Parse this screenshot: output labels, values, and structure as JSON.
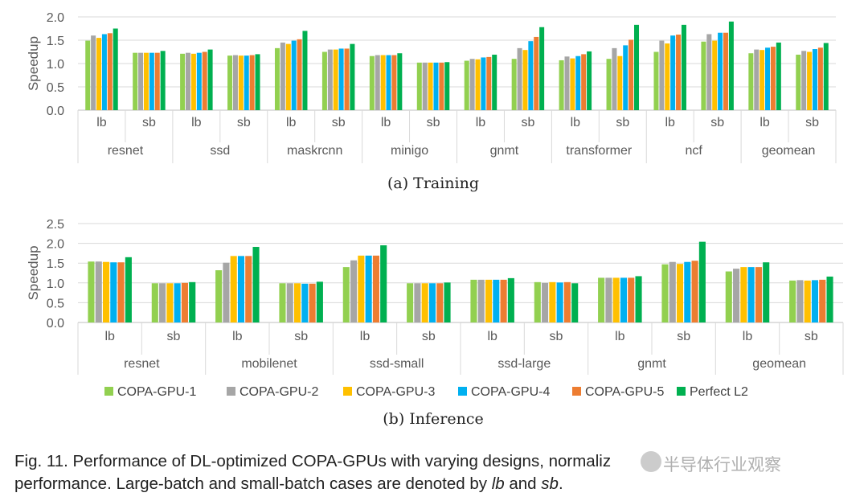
{
  "colors": {
    "COPA-GPU-1": "#92d050",
    "COPA-GPU-2": "#a6a6a6",
    "COPA-GPU-3": "#ffc000",
    "COPA-GPU-4": "#00b0f0",
    "COPA-GPU-5": "#ed7d31",
    "Perfect L2": "#00b050"
  },
  "chart_data": [
    {
      "type": "bar",
      "subtitle": "(a)  Training",
      "ylabel": "Speedup",
      "ylim": [
        0,
        2.0
      ],
      "yticks": [
        "0.0",
        "0.5",
        "1.0",
        "1.5",
        "2.0"
      ],
      "grid": true,
      "groups": [
        "resnet",
        "ssd",
        "maskrcnn",
        "minigo",
        "gnmt",
        "transformer",
        "ncf",
        "geomean"
      ],
      "subcategories": [
        "lb",
        "sb"
      ],
      "series": [
        {
          "name": "COPA-GPU-1",
          "values": [
            1.49,
            1.23,
            1.21,
            1.17,
            1.33,
            1.25,
            1.16,
            1.02,
            1.06,
            1.1,
            1.07,
            1.1,
            1.25,
            1.47,
            1.22,
            1.19
          ]
        },
        {
          "name": "COPA-GPU-2",
          "values": [
            1.6,
            1.23,
            1.23,
            1.18,
            1.45,
            1.3,
            1.18,
            1.02,
            1.1,
            1.33,
            1.15,
            1.33,
            1.49,
            1.63,
            1.3,
            1.27
          ]
        },
        {
          "name": "COPA-GPU-3",
          "values": [
            1.55,
            1.23,
            1.21,
            1.17,
            1.42,
            1.3,
            1.18,
            1.02,
            1.09,
            1.29,
            1.11,
            1.16,
            1.43,
            1.49,
            1.29,
            1.25
          ]
        },
        {
          "name": "COPA-GPU-4",
          "values": [
            1.63,
            1.23,
            1.23,
            1.17,
            1.49,
            1.32,
            1.18,
            1.02,
            1.13,
            1.48,
            1.16,
            1.39,
            1.6,
            1.66,
            1.34,
            1.31
          ]
        },
        {
          "name": "COPA-GPU-5",
          "values": [
            1.65,
            1.23,
            1.25,
            1.18,
            1.52,
            1.32,
            1.18,
            1.02,
            1.14,
            1.57,
            1.2,
            1.51,
            1.62,
            1.66,
            1.36,
            1.34
          ]
        },
        {
          "name": "Perfect L2",
          "values": [
            1.75,
            1.27,
            1.3,
            1.2,
            1.7,
            1.42,
            1.22,
            1.03,
            1.19,
            1.78,
            1.26,
            1.83,
            1.83,
            1.9,
            1.45,
            1.44
          ]
        }
      ]
    },
    {
      "type": "bar",
      "subtitle": "(b)  Inference",
      "ylabel": "Speedup",
      "ylim": [
        0,
        2.5
      ],
      "yticks": [
        "0.0",
        "0.5",
        "1.0",
        "1.5",
        "2.0",
        "2.5"
      ],
      "grid": true,
      "groups": [
        "resnet",
        "mobilenet",
        "ssd-small",
        "ssd-large",
        "gnmt",
        "geomean"
      ],
      "subcategories": [
        "lb",
        "sb"
      ],
      "series": [
        {
          "name": "COPA-GPU-1",
          "values": [
            1.54,
            0.99,
            1.32,
            0.99,
            1.4,
            0.99,
            1.08,
            1.02,
            1.13,
            1.47,
            1.29,
            1.06
          ]
        },
        {
          "name": "COPA-GPU-2",
          "values": [
            1.54,
            0.99,
            1.51,
            0.99,
            1.57,
            0.99,
            1.08,
            1.0,
            1.13,
            1.53,
            1.36,
            1.07
          ]
        },
        {
          "name": "COPA-GPU-3",
          "values": [
            1.53,
            0.99,
            1.68,
            0.99,
            1.69,
            0.99,
            1.08,
            1.02,
            1.13,
            1.48,
            1.4,
            1.06
          ]
        },
        {
          "name": "COPA-GPU-4",
          "values": [
            1.52,
            0.99,
            1.68,
            0.98,
            1.69,
            0.99,
            1.08,
            1.01,
            1.13,
            1.53,
            1.4,
            1.07
          ]
        },
        {
          "name": "COPA-GPU-5",
          "values": [
            1.52,
            1.0,
            1.68,
            0.98,
            1.69,
            0.99,
            1.08,
            1.02,
            1.13,
            1.56,
            1.4,
            1.08
          ]
        },
        {
          "name": "Perfect L2",
          "values": [
            1.65,
            1.02,
            1.91,
            1.03,
            1.95,
            1.01,
            1.12,
            0.99,
            1.17,
            2.04,
            1.52,
            1.16
          ]
        }
      ]
    }
  ],
  "legend": [
    "COPA-GPU-1",
    "COPA-GPU-2",
    "COPA-GPU-3",
    "COPA-GPU-4",
    "COPA-GPU-5",
    "Perfect L2"
  ],
  "caption": {
    "line1": "Fig. 11.  Performance of DL-optimized COPA-GPUs with varying designs, normaliz",
    "line2_start": "performance. Large-batch and small-batch cases are denoted by ",
    "lb": "lb",
    "and": " and ",
    "sb": "sb",
    "end": "."
  },
  "watermark": "半导体行业观察"
}
